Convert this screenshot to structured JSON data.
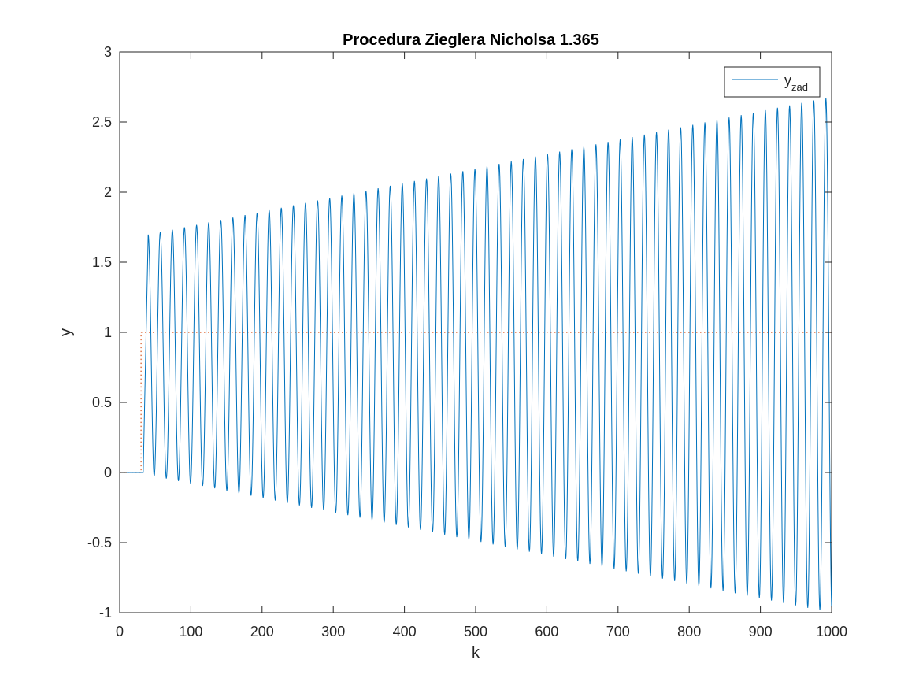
{
  "chart_data": {
    "type": "line",
    "title": "Procedura Zieglera Nicholsa 1.365",
    "xlabel": "k",
    "ylabel": "y",
    "xlim": [
      0,
      1000
    ],
    "ylim": [
      -1,
      3
    ],
    "xticks": [
      0,
      100,
      200,
      300,
      400,
      500,
      600,
      700,
      800,
      900,
      1000
    ],
    "yticks": [
      -1,
      -0.5,
      0,
      0.5,
      1,
      1.5,
      2,
      2.5,
      3
    ],
    "xtick_labels": [
      "0",
      "100",
      "200",
      "300",
      "400",
      "500",
      "600",
      "700",
      "800",
      "900",
      "1000"
    ],
    "ytick_labels": [
      "-1",
      "-0.5",
      "0",
      "0.5",
      "1",
      "1.5",
      "2",
      "2.5",
      "3"
    ],
    "grid": false,
    "legend": {
      "placement": "top-right",
      "entries": [
        {
          "base": "y",
          "subscript": "zad"
        }
      ]
    },
    "series": [
      {
        "name": "y",
        "color": "#0072BD",
        "line_style": "solid",
        "description_points": {
          "initial_value": 0,
          "step_k": 33,
          "period_k": 17,
          "first_peak": {
            "k": 40,
            "y": 1.69
          },
          "first_trough": {
            "k": 48,
            "y": -0.02
          },
          "last_peak": {
            "k": 992,
            "y": 2.7
          },
          "last_trough": {
            "k": 988,
            "y": -1.0
          },
          "center_value": 0.84
        }
      },
      {
        "name": "y_zad",
        "color": "#D95319",
        "line_style": "dotted",
        "points": [
          [
            0,
            0
          ],
          [
            30,
            0
          ],
          [
            30,
            1
          ],
          [
            1000,
            1
          ]
        ]
      }
    ]
  }
}
